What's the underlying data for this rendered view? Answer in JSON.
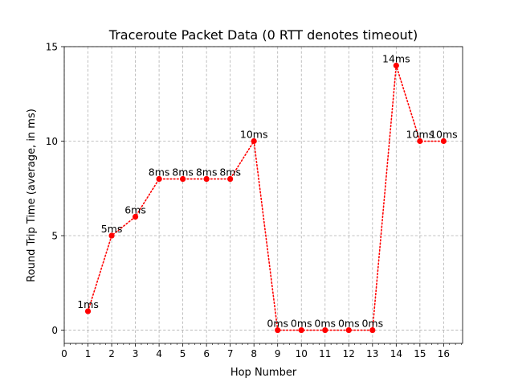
{
  "chart_data": {
    "type": "line",
    "title": "Traceroute Packet Data (0 RTT denotes timeout)",
    "xlabel": "Hop Number",
    "ylabel": "Round Trip Time (average, in ms)",
    "x": [
      1,
      2,
      3,
      4,
      5,
      6,
      7,
      8,
      9,
      10,
      11,
      12,
      13,
      14,
      15,
      16
    ],
    "series": [
      {
        "values": [
          1,
          5,
          6,
          8,
          8,
          8,
          8,
          10,
          0,
          0,
          0,
          0,
          0,
          14,
          10,
          10
        ],
        "color": "#ff0000",
        "line_style": "dotted",
        "marker": "circle"
      }
    ],
    "data_labels": [
      "1ms",
      "5ms",
      "6ms",
      "8ms",
      "8ms",
      "8ms",
      "8ms",
      "10ms",
      "0ms",
      "0ms",
      "0ms",
      "0ms",
      "0ms",
      "14ms",
      "10ms",
      "10ms"
    ],
    "xlim": [
      0,
      16.8
    ],
    "ylim": [
      -0.7,
      15
    ],
    "xticks": [
      0,
      1,
      2,
      3,
      4,
      5,
      6,
      7,
      8,
      9,
      10,
      11,
      12,
      13,
      14,
      15,
      16
    ],
    "xtick_labels": [
      "0",
      "1",
      "2",
      "3",
      "4",
      "5",
      "6",
      "7",
      "8",
      "9",
      "10",
      "11",
      "12",
      "13",
      "14",
      "15",
      "16"
    ],
    "yticks": [
      0,
      5,
      10,
      15
    ],
    "ytick_labels": [
      "0",
      "5",
      "10",
      "15"
    ],
    "x_minor_step": 0.25,
    "grid": true,
    "legend": "none"
  }
}
